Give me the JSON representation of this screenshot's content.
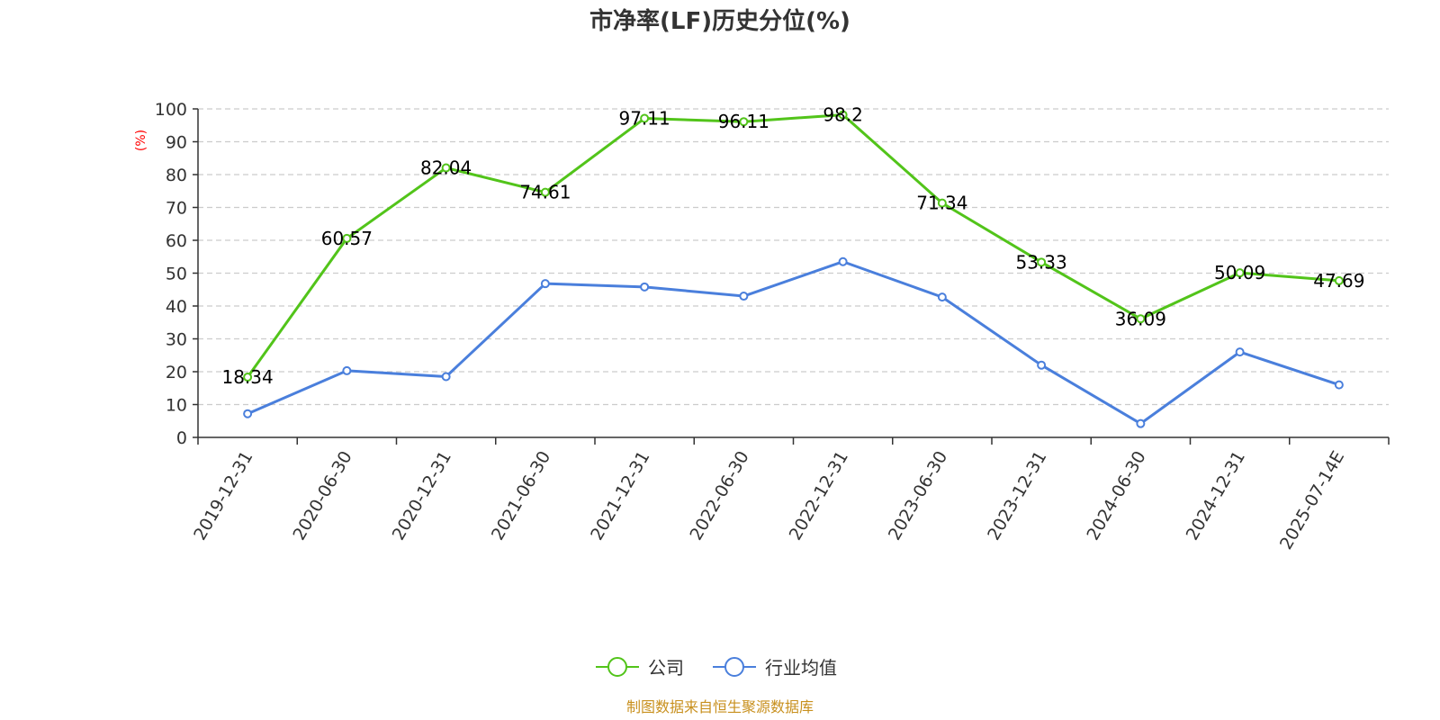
{
  "title": "市净率(LF)历史分位(%)",
  "source_note": "制图数据来自恒生聚源数据库",
  "colors": {
    "company": "#52c41a",
    "industry": "#4a7fdc",
    "ylabel": "#ff0000",
    "source": "#c8901e",
    "grid": "#cccccc",
    "axis": "#333333"
  },
  "chart_data": {
    "type": "line",
    "title": "市净率(LF)历史分位(%)",
    "xlabel": "",
    "ylabel": "(%)",
    "ylim": [
      0,
      100
    ],
    "yticks": [
      0,
      10,
      20,
      30,
      40,
      50,
      60,
      70,
      80,
      90,
      100
    ],
    "grid": true,
    "legend_position": "bottom-center",
    "categories": [
      "2019-12-31",
      "2020-06-30",
      "2020-12-31",
      "2021-06-30",
      "2021-12-31",
      "2022-06-30",
      "2022-12-31",
      "2023-06-30",
      "2023-12-31",
      "2024-06-30",
      "2024-12-31",
      "2025-07-14E"
    ],
    "series": [
      {
        "name": "公司",
        "color": "#52c41a",
        "values": [
          18.34,
          60.57,
          82.04,
          74.61,
          97.11,
          96.11,
          98.2,
          71.34,
          53.33,
          36.09,
          50.09,
          47.69
        ],
        "labels": [
          "18.34",
          "60.57",
          "82.04",
          "74.61",
          "97.11",
          "96.11",
          "98.2",
          "71.34",
          "53.33",
          "36.09",
          "50.09",
          "47.69"
        ]
      },
      {
        "name": "行业均值",
        "color": "#4a7fdc",
        "values": [
          7.2,
          20.3,
          18.5,
          46.8,
          45.8,
          43.0,
          53.5,
          42.7,
          22.0,
          4.2,
          26.0,
          16.0
        ]
      }
    ]
  }
}
